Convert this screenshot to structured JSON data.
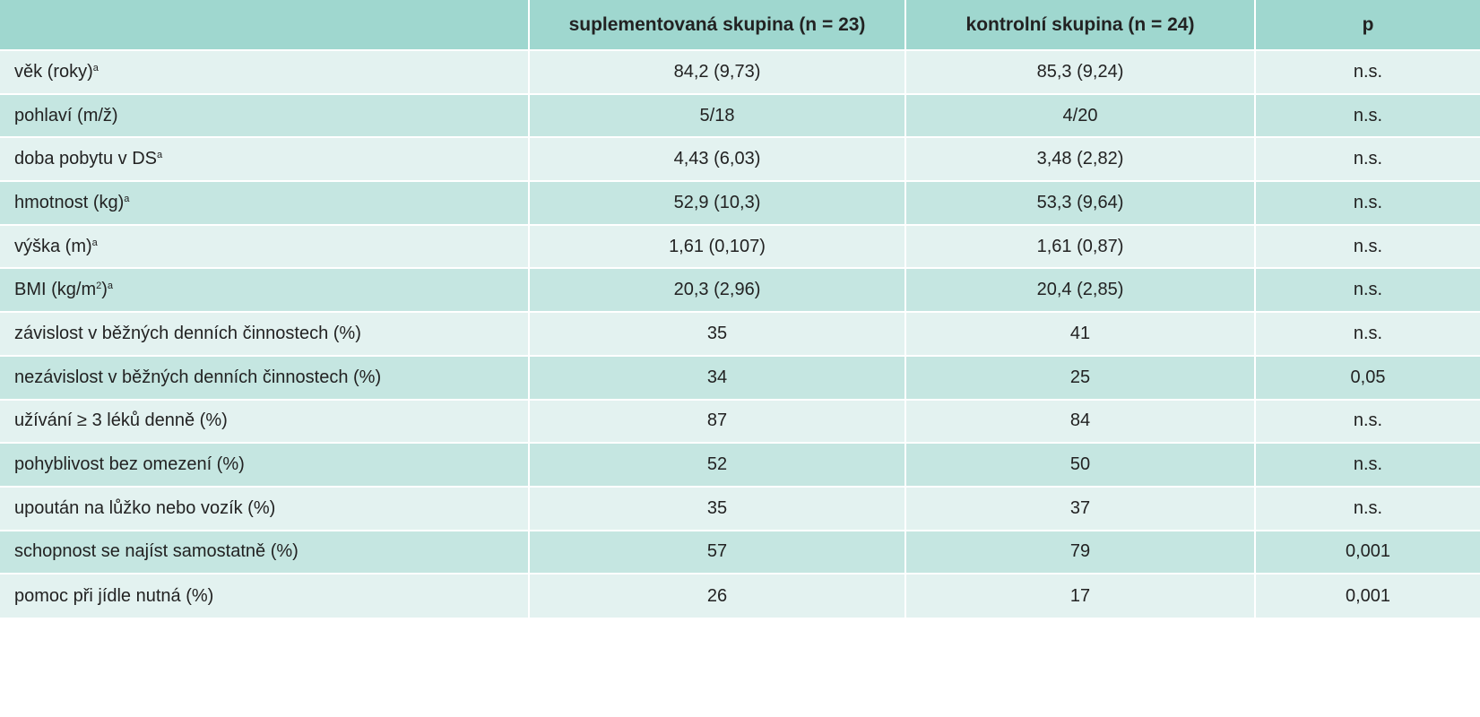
{
  "table": {
    "headers": [
      "",
      "suplementovaná skupina (n = 23)",
      "kontrolní skupina (n = 24)",
      "p"
    ],
    "rows": [
      {
        "label": "věk (roky)",
        "sup": "a",
        "suffix": "",
        "supplemented": "84,2 (9,73)",
        "control": "85,3 (9,24)",
        "p": "n.s."
      },
      {
        "label": "pohlaví (m/ž)",
        "sup": "",
        "suffix": "",
        "supplemented": "5/18",
        "control": "4/20",
        "p": "n.s."
      },
      {
        "label": "doba pobytu v DS",
        "sup": "a",
        "suffix": "",
        "supplemented": "4,43 (6,03)",
        "control": "3,48 (2,82)",
        "p": "n.s."
      },
      {
        "label": "hmotnost (kg)",
        "sup": "a",
        "suffix": "",
        "supplemented": "52,9 (10,3)",
        "control": "53,3 (9,64)",
        "p": "n.s."
      },
      {
        "label": "výška (m)",
        "sup": "a",
        "suffix": "",
        "supplemented": "1,61 (0,107)",
        "control": "1,61 (0,87)",
        "p": "n.s."
      },
      {
        "label": "BMI (kg/m",
        "sup": "2",
        "suffix": ")",
        "sup2": "a",
        "supplemented": "20,3 (2,96)",
        "control": "20,4 (2,85)",
        "p": "n.s."
      },
      {
        "label": "závislost v běžných denních činnostech (%)",
        "sup": "",
        "suffix": "",
        "supplemented": "35",
        "control": "41",
        "p": "n.s."
      },
      {
        "label": "nezávislost v běžných denních činnostech (%)",
        "sup": "",
        "suffix": "",
        "supplemented": "34",
        "control": "25",
        "p": "0,05"
      },
      {
        "label": "užívání ≥ 3 léků denně (%)",
        "sup": "",
        "suffix": "",
        "supplemented": "87",
        "control": "84",
        "p": "n.s."
      },
      {
        "label": "pohyblivost bez omezení (%)",
        "sup": "",
        "suffix": "",
        "supplemented": "52",
        "control": "50",
        "p": "n.s."
      },
      {
        "label": "upoután na lůžko nebo vozík (%)",
        "sup": "",
        "suffix": "",
        "supplemented": "35",
        "control": "37",
        "p": "n.s."
      },
      {
        "label": "schopnost se najíst samostatně (%)",
        "sup": "",
        "suffix": "",
        "supplemented": "57",
        "control": "79",
        "p": "0,001"
      },
      {
        "label": "pomoc při jídle nutná (%)",
        "sup": "",
        "suffix": "",
        "supplemented": "26",
        "control": "17",
        "p": "0,001"
      }
    ]
  },
  "colors": {
    "header_bg": "#9fd7cf",
    "row_light": "#e3f2f0",
    "row_dark": "#c5e6e1"
  }
}
